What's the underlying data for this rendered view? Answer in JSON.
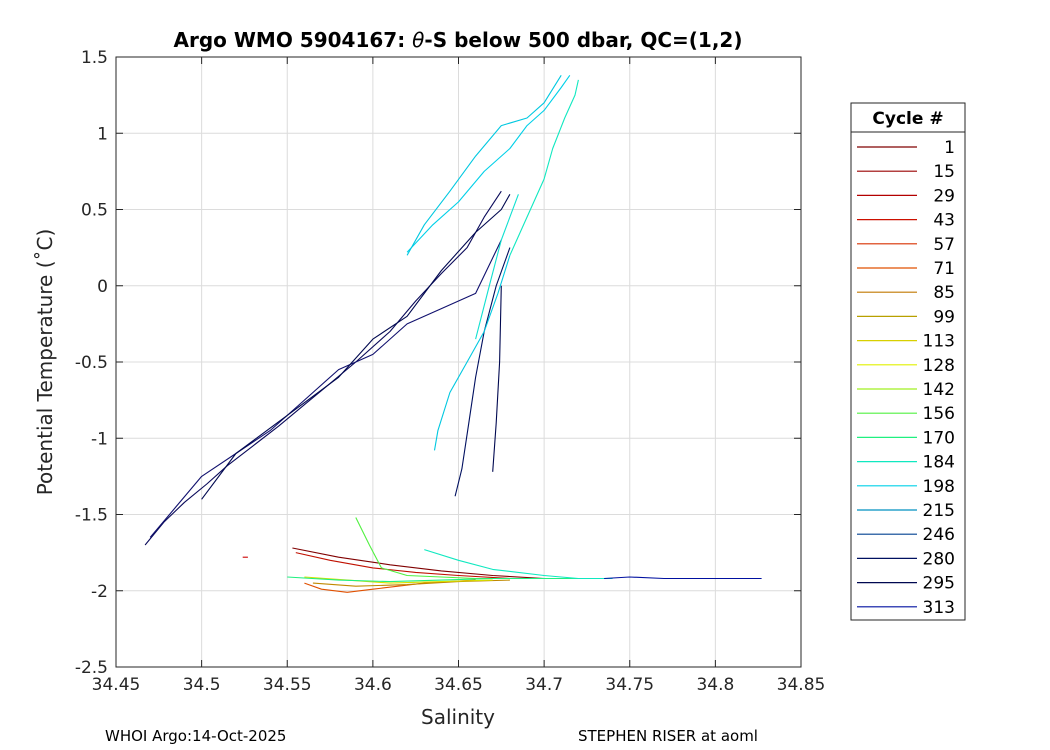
{
  "chart_data": {
    "type": "line",
    "title_prefix": "Argo WMO 5904167: ",
    "title_theta": "θ",
    "title_suffix": "-S below 500 dbar,  QC=(1,2)",
    "xlabel": "Salinity",
    "ylabel": "Potential Temperature (˚C)",
    "xlim": [
      34.45,
      34.85
    ],
    "ylim": [
      -2.5,
      1.5
    ],
    "xticks": [
      "34.45",
      "34.5",
      "34.55",
      "34.6",
      "34.65",
      "34.7",
      "34.75",
      "34.8",
      "34.85"
    ],
    "yticks": [
      "1.5",
      "1",
      "0.5",
      "0",
      "-0.5",
      "-1",
      "-1.5",
      "-2",
      "-2.5"
    ],
    "grid": true,
    "legend": {
      "title": "Cycle #",
      "position": "right",
      "entries": [
        {
          "label": "1",
          "color": "#800000"
        },
        {
          "label": "15",
          "color": "#9a0000"
        },
        {
          "label": "29",
          "color": "#b30000"
        },
        {
          "label": "43",
          "color": "#cc1000"
        },
        {
          "label": "57",
          "color": "#d93000"
        },
        {
          "label": "71",
          "color": "#e05000"
        },
        {
          "label": "85",
          "color": "#c07800"
        },
        {
          "label": "99",
          "color": "#b8a000"
        },
        {
          "label": "113",
          "color": "#d8d000"
        },
        {
          "label": "128",
          "color": "#e0f000"
        },
        {
          "label": "142",
          "color": "#a0f020"
        },
        {
          "label": "156",
          "color": "#50f040"
        },
        {
          "label": "170",
          "color": "#20f080"
        },
        {
          "label": "184",
          "color": "#10e8c0"
        },
        {
          "label": "198",
          "color": "#00d0e8"
        },
        {
          "label": "215",
          "color": "#0090c0"
        },
        {
          "label": "246",
          "color": "#004090"
        },
        {
          "label": "280",
          "color": "#001060"
        },
        {
          "label": "295",
          "color": "#000850"
        },
        {
          "label": "313",
          "color": "#0010a0"
        }
      ]
    },
    "series": [
      {
        "name": "deep-profiles-navy",
        "color": "#0a0a5a",
        "x": [
          34.467,
          34.478,
          34.49,
          34.503,
          34.515,
          34.53,
          34.545,
          34.56,
          34.575,
          34.59,
          34.61,
          34.625,
          34.64,
          34.655,
          34.665,
          34.675
        ],
        "y": [
          -1.7,
          -1.55,
          -1.42,
          -1.3,
          -1.18,
          -1.05,
          -0.92,
          -0.78,
          -0.64,
          -0.5,
          -0.3,
          -0.1,
          0.08,
          0.25,
          0.45,
          0.62
        ]
      },
      {
        "name": "deep-profiles-navy-2",
        "color": "#10106e",
        "x": [
          34.47,
          34.485,
          34.5,
          34.52,
          34.54,
          34.56,
          34.58,
          34.6,
          34.62,
          34.64,
          34.66,
          34.675
        ],
        "y": [
          -1.65,
          -1.45,
          -1.25,
          -1.1,
          -0.95,
          -0.75,
          -0.55,
          -0.45,
          -0.25,
          -0.15,
          -0.05,
          0.3
        ]
      },
      {
        "name": "deep-profiles-navy-3",
        "color": "#000850",
        "x": [
          34.5,
          34.52,
          34.55,
          34.58,
          34.6,
          34.62,
          34.64,
          34.66,
          34.675,
          34.68
        ],
        "y": [
          -1.4,
          -1.1,
          -0.85,
          -0.6,
          -0.35,
          -0.2,
          0.1,
          0.35,
          0.5,
          0.6
        ]
      },
      {
        "name": "navy-descending-tail",
        "color": "#001060",
        "x": [
          34.68,
          34.672,
          34.665,
          34.66,
          34.656,
          34.652,
          34.648
        ],
        "y": [
          0.25,
          0.0,
          -0.3,
          -0.6,
          -0.9,
          -1.2,
          -1.38
        ]
      },
      {
        "name": "navy-descending-tail-2",
        "color": "#000850",
        "x": [
          34.675,
          34.674,
          34.672,
          34.67
        ],
        "y": [
          0.0,
          -0.5,
          -0.9,
          -1.22
        ]
      },
      {
        "name": "cyan-upper-branch",
        "color": "#00d0e8",
        "x": [
          34.62,
          34.635,
          34.65,
          34.665,
          34.68,
          34.69,
          34.7,
          34.71,
          34.715
        ],
        "y": [
          0.22,
          0.4,
          0.55,
          0.75,
          0.9,
          1.05,
          1.15,
          1.3,
          1.38
        ]
      },
      {
        "name": "cyan-upper-branch-2",
        "color": "#10e8c0",
        "x": [
          34.68,
          34.69,
          34.7,
          34.705,
          34.712,
          34.718,
          34.72
        ],
        "y": [
          0.2,
          0.45,
          0.7,
          0.9,
          1.1,
          1.25,
          1.35
        ]
      },
      {
        "name": "cyan-long-line",
        "color": "#00c8e0",
        "x": [
          34.62,
          34.63,
          34.645,
          34.66,
          34.675,
          34.69,
          34.7,
          34.71
        ],
        "y": [
          0.2,
          0.4,
          0.62,
          0.85,
          1.05,
          1.1,
          1.2,
          1.38
        ]
      },
      {
        "name": "cyan-descending",
        "color": "#00c8e0",
        "x": [
          34.68,
          34.673,
          34.665,
          34.655,
          34.645,
          34.638,
          34.636
        ],
        "y": [
          0.2,
          -0.05,
          -0.3,
          -0.5,
          -0.7,
          -0.95,
          -1.08
        ]
      },
      {
        "name": "cyan-descending-2",
        "color": "#10e0d0",
        "x": [
          34.685,
          34.675,
          34.668,
          34.66
        ],
        "y": [
          0.6,
          0.3,
          0.0,
          -0.35
        ]
      },
      {
        "name": "cycle-1-15",
        "color": "#800000",
        "x": [
          34.553,
          34.58,
          34.61,
          34.64,
          34.67,
          34.7
        ],
        "y": [
          -1.72,
          -1.78,
          -1.83,
          -1.87,
          -1.9,
          -1.92
        ]
      },
      {
        "name": "cycle-29-43",
        "color": "#c01000",
        "x": [
          34.555,
          34.575,
          34.6,
          34.625,
          34.65,
          34.68
        ],
        "y": [
          -1.75,
          -1.8,
          -1.85,
          -1.88,
          -1.9,
          -1.92
        ]
      },
      {
        "name": "cycle-57-71",
        "color": "#e05000",
        "x": [
          34.56,
          34.57,
          34.585,
          34.6,
          34.63,
          34.66
        ],
        "y": [
          -1.95,
          -1.99,
          -2.01,
          -1.99,
          -1.95,
          -1.93
        ]
      },
      {
        "name": "cycle-85-99",
        "color": "#c08800",
        "x": [
          34.565,
          34.59,
          34.62,
          34.65,
          34.68
        ],
        "y": [
          -1.95,
          -1.97,
          -1.96,
          -1.94,
          -1.93
        ]
      },
      {
        "name": "cycle-113-128",
        "color": "#d8e000",
        "x": [
          34.56,
          34.585,
          34.61,
          34.64,
          34.67
        ],
        "y": [
          -1.91,
          -1.93,
          -1.95,
          -1.94,
          -1.93
        ]
      },
      {
        "name": "cycle-142-156",
        "color": "#50f040",
        "x": [
          34.59,
          34.598,
          34.605,
          34.62,
          34.66,
          34.7
        ],
        "y": [
          -1.52,
          -1.7,
          -1.85,
          -1.9,
          -1.92,
          -1.92
        ]
      },
      {
        "name": "cycle-170",
        "color": "#20f080",
        "x": [
          34.55,
          34.58,
          34.61,
          34.64,
          34.67,
          34.7,
          34.72
        ],
        "y": [
          -1.91,
          -1.93,
          -1.94,
          -1.93,
          -1.92,
          -1.92,
          -1.92
        ]
      },
      {
        "name": "cycle-184-198",
        "color": "#10e8c0",
        "x": [
          34.63,
          34.65,
          34.67,
          34.7,
          34.72,
          34.74
        ],
        "y": [
          -1.73,
          -1.8,
          -1.86,
          -1.9,
          -1.92,
          -1.92
        ]
      },
      {
        "name": "cycle-246-313",
        "color": "#0010a0",
        "x": [
          34.735,
          34.75,
          34.77,
          34.79,
          34.81,
          34.827
        ],
        "y": [
          -1.92,
          -1.91,
          -1.92,
          -1.92,
          -1.92,
          -1.92
        ]
      },
      {
        "name": "short-red-dash",
        "color": "#cc0000",
        "x": [
          34.524,
          34.527
        ],
        "y": [
          -1.78,
          -1.78
        ]
      }
    ]
  },
  "footer": {
    "left": "WHOI Argo:14-Oct-2025",
    "right": "STEPHEN RISER at aoml"
  }
}
